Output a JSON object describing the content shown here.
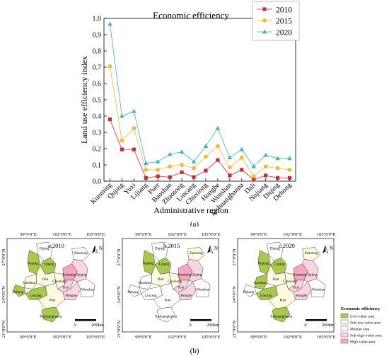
{
  "chart_data": {
    "type": "line",
    "title": "Economic efficiency",
    "xlabel": "Administrative region",
    "ylabel": "Land use efficiency index",
    "ylim": [
      0,
      1.0
    ],
    "yticks": [
      "0.0",
      "0.1",
      "0.2",
      "0.3",
      "0.4",
      "0.5",
      "0.6",
      "0.7",
      "0.8",
      "0.9",
      "1.0"
    ],
    "grid": false,
    "legend_position": "top-right",
    "categories": [
      "Kunming",
      "Qujing",
      "Yuxi",
      "Lijiang",
      "Puer",
      "Baoshan",
      "Zhaotong",
      "Lincang",
      "Chuxiong",
      "Honghe",
      "Wenshan",
      "Xishuangbanna",
      "Dali",
      "Nujiang",
      "Diqing",
      "Dehong"
    ],
    "series": [
      {
        "name": "2010",
        "color": "#d62728",
        "marker": "square",
        "values": [
          0.38,
          0.195,
          0.195,
          0.02,
          0.03,
          0.025,
          0.055,
          0.025,
          0.065,
          0.13,
          0.035,
          0.07,
          0.01,
          0.035,
          0.02,
          0.02
        ]
      },
      {
        "name": "2015",
        "color": "#f5b932",
        "marker": "circle",
        "values": [
          0.705,
          0.25,
          0.325,
          0.07,
          0.07,
          0.09,
          0.1,
          0.08,
          0.15,
          0.215,
          0.085,
          0.145,
          0.03,
          0.09,
          0.08,
          0.07
        ]
      },
      {
        "name": "2020",
        "color": "#3cb8b8",
        "marker": "triangle",
        "values": [
          0.965,
          0.4,
          0.43,
          0.11,
          0.12,
          0.165,
          0.18,
          0.12,
          0.215,
          0.325,
          0.145,
          0.195,
          0.09,
          0.16,
          0.14,
          0.14
        ]
      }
    ]
  },
  "caption_a": "(a)",
  "caption_b": "(b)",
  "maps": {
    "lon_labels": [
      "99°0'0\"E",
      "102°0'0\"E",
      "105°0'0\"E"
    ],
    "lat_labels": [
      "27°0'0\"N",
      "24°0'0\"N",
      "21°0'0\"N"
    ],
    "north": "N",
    "scale_zero": "0",
    "scale_label": "200km",
    "panels": [
      {
        "title": "a.2010",
        "fills": {
          "Diqing": "#ffffff",
          "Nujiang": "#a9c84e",
          "Lijiang": "#a9c84e",
          "Dali": "#fffce0",
          "Zhaotong": "#ffffff",
          "Chuxiong": "#fffce0",
          "Kunming": "#f4a7c0",
          "Qujing": "#fad5e0",
          "Baoshan": "#fffce0",
          "Dehong": "#a9c84e",
          "Lincang": "#a9c84e",
          "Yuxi": "#fad5e0",
          "Honghe": "#fad5e0",
          "Wenshan": "#ffffff",
          "Puer": "#fffce0",
          "Xishuangbanna": "#a9c84e"
        }
      },
      {
        "title": "b.2015",
        "fills": {
          "Diqing": "#ffffff",
          "Nujiang": "#a9c84e",
          "Lijiang": "#a9c84e",
          "Dali": "#fffce0",
          "Zhaotong": "#fffce0",
          "Chuxiong": "#fffce0",
          "Kunming": "#f4a7c0",
          "Qujing": "#fad5e0",
          "Baoshan": "#ffffff",
          "Dehong": "#ffffff",
          "Lincang": "#ffffff",
          "Yuxi": "#fad5e0",
          "Honghe": "#fad5e0",
          "Wenshan": "#ffffff",
          "Puer": "#ffffff",
          "Xishuangbanna": "#ffffff"
        }
      },
      {
        "title": "c.2020",
        "fills": {
          "Diqing": "#ffffff",
          "Nujiang": "#a9c84e",
          "Lijiang": "#a9c84e",
          "Dali": "#fffce0",
          "Zhaotong": "#fffce0",
          "Chuxiong": "#fffce0",
          "Kunming": "#f4a7c0",
          "Qujing": "#fad5e0",
          "Baoshan": "#a9c84e",
          "Dehong": "#ffffff",
          "Lincang": "#a9c84e",
          "Yuxi": "#fad5e0",
          "Honghe": "#fad5e0",
          "Wenshan": "#ffffff",
          "Puer": "#fffce0",
          "Xishuangbanna": "#a9c84e"
        }
      }
    ],
    "legend": {
      "title": "Economic efficiency",
      "items": [
        {
          "label": "Low-value area",
          "color": "#a9c84e"
        },
        {
          "label": "Sub-low-value area",
          "color": "#fffce0"
        },
        {
          "label": "Median area",
          "color": "#ffffff"
        },
        {
          "label": "Sub-high-value area",
          "color": "#fad5e0"
        },
        {
          "label": "High-value area",
          "color": "#f4a7c0"
        }
      ]
    }
  }
}
